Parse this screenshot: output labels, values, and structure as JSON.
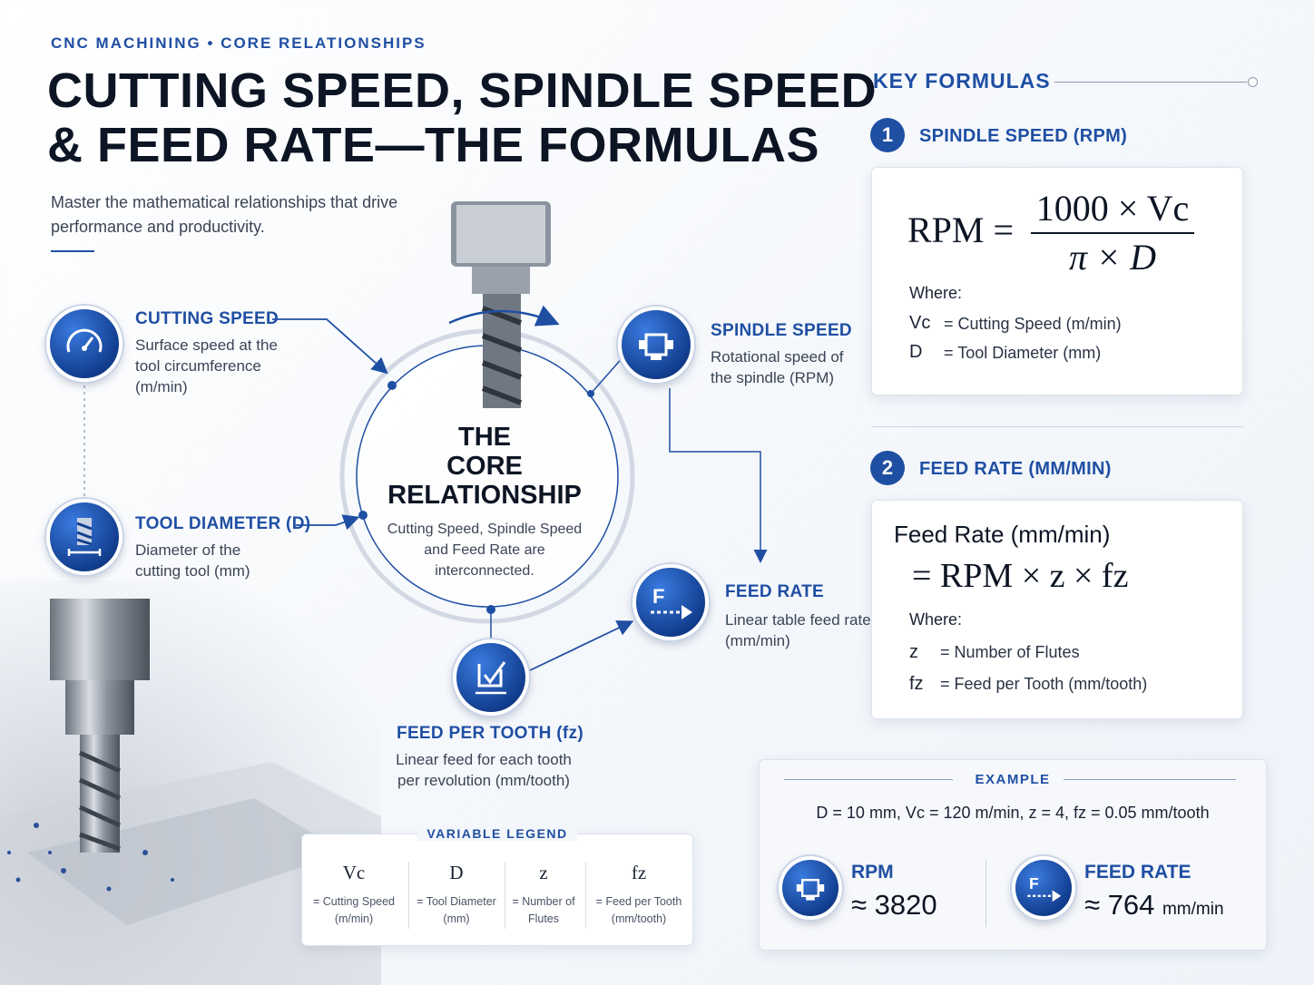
{
  "header": {
    "eyebrow": "CNC MACHINING • CORE RELATIONSHIPS",
    "title_line1": "CUTTING SPEED, SPINDLE SPEED",
    "title_line2": "& FEED RATE—THE FORMULAS",
    "subtitle": "Master the mathematical relationships that drive performance and productivity."
  },
  "diagram": {
    "core": {
      "title_line1": "THE",
      "title_line2": "CORE",
      "title_line3": "RELATIONSHIP",
      "text": "Cutting Speed, Spindle Speed and Feed Rate are interconnected."
    },
    "nodes": {
      "cutting_speed": {
        "title": "CUTTING SPEED",
        "desc_line1": "Surface speed at the",
        "desc_line2": "tool circumference",
        "desc_line3": "(m/min)",
        "icon": "speedometer-icon"
      },
      "tool_diameter": {
        "title": "TOOL DIAMETER (D)",
        "desc_line1": "Diameter of the",
        "desc_line2": "cutting tool (mm)",
        "icon": "end-mill-icon"
      },
      "spindle_speed": {
        "title": "SPINDLE SPEED",
        "desc_line1": "Rotational speed of",
        "desc_line2": "the spindle (RPM)",
        "icon": "spindle-motor-icon"
      },
      "feed_rate": {
        "title": "FEED RATE",
        "desc_line1": "Linear table feed rate",
        "desc_line2": "(mm/min)",
        "icon": "feed-arrow-icon",
        "badge_letter": "F"
      },
      "feed_per_tooth": {
        "title": "FEED PER TOOTH (fz)",
        "desc_line1": "Linear feed for each tooth",
        "desc_line2": "per revolution (mm/tooth)",
        "icon": "tooth-feed-icon"
      }
    },
    "accent_color": "#1f4fa3"
  },
  "formulas": {
    "heading": "KEY FORMULAS",
    "spindle": {
      "number": "1",
      "title": "SPINDLE SPEED (RPM)",
      "lhs": "RPM =",
      "numerator": "1000 × Vc",
      "denominator": "π × D",
      "where": "Where:",
      "vars": [
        {
          "sym": "Vc",
          "def": "= Cutting Speed (m/min)"
        },
        {
          "sym": "D",
          "def": "= Tool Diameter (mm)"
        }
      ]
    },
    "feed": {
      "number": "2",
      "title": "FEED RATE (MM/MIN)",
      "line1": "Feed Rate (mm/min)",
      "line2": "= RPM × z × fz",
      "where": "Where:",
      "vars": [
        {
          "sym": "z",
          "def": "= Number of Flutes"
        },
        {
          "sym": "fz",
          "def": "= Feed per Tooth (mm/tooth)"
        }
      ]
    }
  },
  "legend": {
    "title": "VARIABLE LEGEND",
    "items": [
      {
        "sym": "Vc",
        "def1": "= Cutting Speed",
        "def2": "(m/min)"
      },
      {
        "sym": "D",
        "def1": "= Tool Diameter",
        "def2": "(mm)"
      },
      {
        "sym": "z",
        "def1": "= Number of",
        "def2": "Flutes"
      },
      {
        "sym": "fz",
        "def1": "= Feed per Tooth",
        "def2": "(mm/tooth)"
      }
    ]
  },
  "example": {
    "title": "EXAMPLE",
    "values": "D = 10 mm,   Vc = 120 m/min,   z = 4,   fz = 0.05 mm/tooth",
    "rpm": {
      "label": "RPM",
      "value": "≈ 3820"
    },
    "feed_rate": {
      "label": "FEED RATE",
      "value": "≈ 764",
      "unit": "mm/min",
      "badge_letter": "F"
    }
  }
}
